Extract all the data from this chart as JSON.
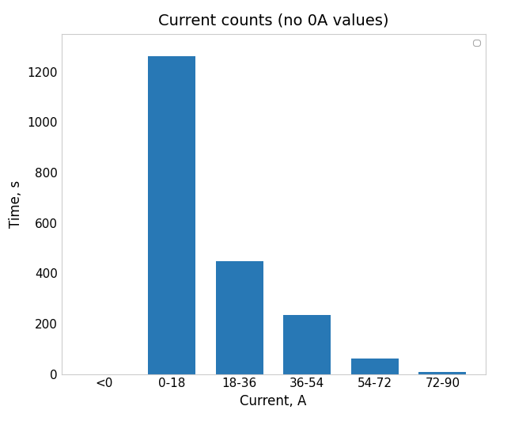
{
  "title": "Current counts (no 0A values)",
  "xlabel": "Current, A",
  "ylabel": "Time, s",
  "categories": [
    "<0",
    "0-18",
    "18-36",
    "36-54",
    "54-72",
    "72-90"
  ],
  "values": [
    0,
    1262,
    449,
    233,
    62,
    8
  ],
  "bar_color": "#2878b5",
  "ylim": [
    0,
    1350
  ],
  "yticks": [
    0,
    200,
    400,
    600,
    800,
    1000,
    1200
  ],
  "title_fontsize": 14,
  "axis_label_fontsize": 12,
  "tick_fontsize": 11,
  "background_color": "#ffffff",
  "spine_color": "#cccccc",
  "figsize": [
    6.46,
    5.37
  ],
  "dpi": 100
}
